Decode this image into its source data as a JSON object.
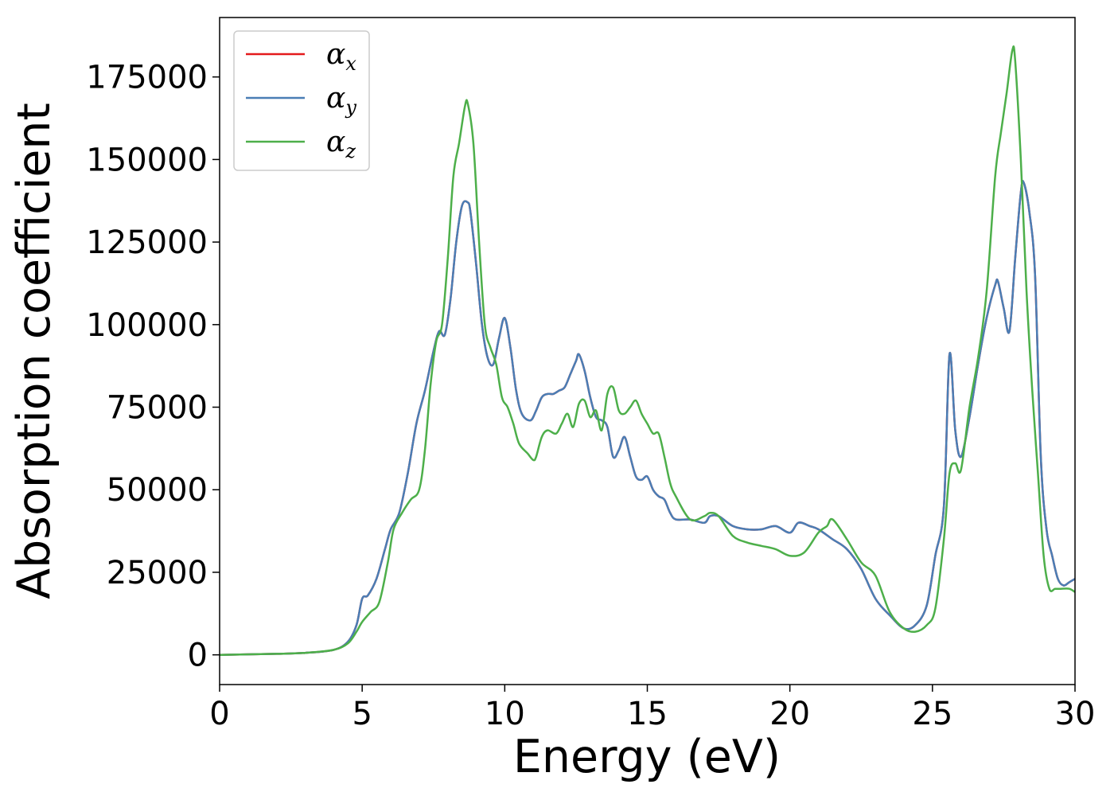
{
  "chart_data": {
    "type": "line",
    "title": "",
    "xlabel": "Energy (eV)",
    "ylabel": "Absorption coefficient",
    "xlim": [
      0,
      30
    ],
    "ylim": [
      -9000,
      193000
    ],
    "xticks": [
      0,
      5,
      10,
      15,
      20,
      25,
      30
    ],
    "yticks": [
      0,
      25000,
      50000,
      75000,
      100000,
      125000,
      150000,
      175000
    ],
    "grid": false,
    "legend_position": "top-left",
    "series": [
      {
        "name": "α_x",
        "legend_symbol": "α",
        "legend_subscript": "x",
        "color": "#e41a1c",
        "x": [
          0,
          2,
          3,
          4,
          4.5,
          4.8,
          5,
          5.2,
          5.5,
          5.8,
          6,
          6.3,
          6.6,
          6.9,
          7.2,
          7.5,
          7.7,
          7.9,
          8.1,
          8.3,
          8.5,
          8.7,
          8.8,
          9.0,
          9.2,
          9.4,
          9.6,
          9.8,
          10.0,
          10.2,
          10.4,
          10.6,
          10.9,
          11.1,
          11.3,
          11.5,
          11.7,
          11.9,
          12.1,
          12.3,
          12.5,
          12.6,
          12.8,
          13.0,
          13.2,
          13.4,
          13.6,
          13.8,
          14.0,
          14.2,
          14.4,
          14.6,
          14.8,
          15.0,
          15.2,
          15.4,
          15.6,
          15.8,
          16.0,
          16.5,
          17.0,
          17.2,
          17.5,
          18.0,
          18.5,
          19.0,
          19.5,
          20.0,
          20.3,
          20.7,
          21.0,
          21.5,
          22.0,
          22.5,
          23.0,
          23.5,
          24.0,
          24.4,
          24.8,
          25.1,
          25.4,
          25.6,
          25.8,
          26.0,
          26.3,
          26.6,
          26.9,
          27.2,
          27.3,
          27.5,
          27.7,
          27.9,
          28.1,
          28.2,
          28.4,
          28.6,
          28.8,
          29.0,
          29.2,
          29.4,
          29.6,
          29.8,
          30.0
        ],
        "y": [
          0,
          300,
          600,
          1500,
          4000,
          9000,
          17000,
          18000,
          23000,
          32000,
          38000,
          43000,
          55000,
          70000,
          80000,
          92000,
          98000,
          97000,
          108000,
          125000,
          136000,
          137000,
          134000,
          118000,
          100000,
          90000,
          88000,
          96000,
          102000,
          93000,
          80000,
          73000,
          71000,
          74000,
          78000,
          79000,
          79000,
          80000,
          81000,
          85000,
          89000,
          91000,
          86000,
          78000,
          72000,
          71000,
          69000,
          60000,
          62000,
          66000,
          60000,
          54000,
          53000,
          54000,
          50000,
          48000,
          47000,
          43000,
          41000,
          41000,
          40000,
          42000,
          42000,
          39000,
          38000,
          38000,
          39000,
          37000,
          40000,
          39000,
          38000,
          35000,
          32000,
          26000,
          17000,
          12000,
          8000,
          9000,
          15000,
          30000,
          45000,
          91000,
          68000,
          60000,
          72000,
          88000,
          102000,
          112000,
          113000,
          105000,
          98000,
          120000,
          140000,
          143000,
          134000,
          115000,
          60000,
          38000,
          30000,
          23000,
          21000,
          22000,
          23000
        ]
      },
      {
        "name": "α_y",
        "legend_symbol": "α",
        "legend_subscript": "y",
        "color": "#4a7eb5",
        "x": [
          0,
          2,
          3,
          4,
          4.5,
          4.8,
          5,
          5.2,
          5.5,
          5.8,
          6,
          6.3,
          6.6,
          6.9,
          7.2,
          7.5,
          7.7,
          7.9,
          8.1,
          8.3,
          8.5,
          8.7,
          8.8,
          9.0,
          9.2,
          9.4,
          9.6,
          9.8,
          10.0,
          10.2,
          10.4,
          10.6,
          10.9,
          11.1,
          11.3,
          11.5,
          11.7,
          11.9,
          12.1,
          12.3,
          12.5,
          12.6,
          12.8,
          13.0,
          13.2,
          13.4,
          13.6,
          13.8,
          14.0,
          14.2,
          14.4,
          14.6,
          14.8,
          15.0,
          15.2,
          15.4,
          15.6,
          15.8,
          16.0,
          16.5,
          17.0,
          17.2,
          17.5,
          18.0,
          18.5,
          19.0,
          19.5,
          20.0,
          20.3,
          20.7,
          21.0,
          21.5,
          22.0,
          22.5,
          23.0,
          23.5,
          24.0,
          24.4,
          24.8,
          25.1,
          25.4,
          25.6,
          25.8,
          26.0,
          26.3,
          26.6,
          26.9,
          27.2,
          27.3,
          27.5,
          27.7,
          27.9,
          28.1,
          28.2,
          28.4,
          28.6,
          28.8,
          29.0,
          29.2,
          29.4,
          29.6,
          29.8,
          30.0
        ],
        "y": [
          0,
          300,
          600,
          1500,
          4000,
          9000,
          17000,
          18000,
          23000,
          32000,
          38000,
          43000,
          55000,
          70000,
          80000,
          92000,
          98000,
          97000,
          108000,
          125000,
          136000,
          137000,
          134000,
          118000,
          100000,
          90000,
          88000,
          96000,
          102000,
          93000,
          80000,
          73000,
          71000,
          74000,
          78000,
          79000,
          79000,
          80000,
          81000,
          85000,
          89000,
          91000,
          86000,
          78000,
          72000,
          71000,
          69000,
          60000,
          62000,
          66000,
          60000,
          54000,
          53000,
          54000,
          50000,
          48000,
          47000,
          43000,
          41000,
          41000,
          40000,
          42000,
          42000,
          39000,
          38000,
          38000,
          39000,
          37000,
          40000,
          39000,
          38000,
          35000,
          32000,
          26000,
          17000,
          12000,
          8000,
          9000,
          15000,
          30000,
          45000,
          91000,
          68000,
          60000,
          72000,
          88000,
          102000,
          112000,
          113000,
          105000,
          98000,
          120000,
          140000,
          143000,
          134000,
          115000,
          60000,
          38000,
          30000,
          23000,
          21000,
          22000,
          23000
        ]
      },
      {
        "name": "α_z",
        "legend_symbol": "α",
        "legend_subscript": "z",
        "color": "#4daf4a",
        "x": [
          0,
          2,
          3,
          4,
          4.5,
          4.8,
          5,
          5.3,
          5.6,
          5.9,
          6.1,
          6.4,
          6.7,
          7.0,
          7.2,
          7.4,
          7.6,
          7.8,
          8.0,
          8.2,
          8.4,
          8.6,
          8.7,
          8.9,
          9.1,
          9.3,
          9.5,
          9.7,
          9.9,
          10.1,
          10.3,
          10.5,
          10.8,
          11.0,
          11.1,
          11.3,
          11.5,
          11.8,
          12.0,
          12.2,
          12.4,
          12.6,
          12.8,
          13.0,
          13.2,
          13.4,
          13.6,
          13.8,
          14.0,
          14.2,
          14.4,
          14.6,
          14.8,
          15.0,
          15.2,
          15.4,
          15.6,
          15.8,
          16.0,
          16.5,
          17.0,
          17.2,
          17.5,
          18.0,
          18.5,
          19.0,
          19.5,
          20.0,
          20.5,
          21.0,
          21.3,
          21.5,
          22.0,
          22.5,
          23.0,
          23.5,
          24.0,
          24.4,
          24.8,
          25.1,
          25.4,
          25.6,
          25.8,
          26.0,
          26.3,
          26.6,
          26.9,
          27.2,
          27.4,
          27.6,
          27.8,
          27.9,
          28.1,
          28.3,
          28.5,
          28.7,
          28.9,
          29.1,
          29.3,
          29.5,
          29.8,
          30.0
        ],
        "y": [
          0,
          300,
          600,
          1500,
          3500,
          7000,
          10000,
          13000,
          16000,
          28000,
          38000,
          43000,
          47000,
          50000,
          62000,
          82000,
          95000,
          100000,
          120000,
          145000,
          155000,
          166000,
          167000,
          155000,
          125000,
          100000,
          93000,
          88000,
          78000,
          75000,
          70000,
          64000,
          61000,
          59000,
          60000,
          66000,
          68000,
          67000,
          70000,
          73000,
          69000,
          76000,
          77000,
          72000,
          74000,
          68000,
          79000,
          81000,
          74000,
          73000,
          75000,
          77000,
          73000,
          70000,
          67000,
          67000,
          60000,
          52000,
          48000,
          41000,
          42000,
          43000,
          42000,
          36000,
          34000,
          33000,
          32000,
          30000,
          31000,
          37000,
          39000,
          41000,
          35000,
          28000,
          24000,
          13000,
          8000,
          7000,
          9000,
          14000,
          35000,
          55000,
          58000,
          56000,
          75000,
          90000,
          110000,
          145000,
          158000,
          170000,
          183000,
          180000,
          150000,
          110000,
          80000,
          55000,
          30000,
          20000,
          20000,
          20000,
          20000,
          19000
        ]
      }
    ]
  }
}
